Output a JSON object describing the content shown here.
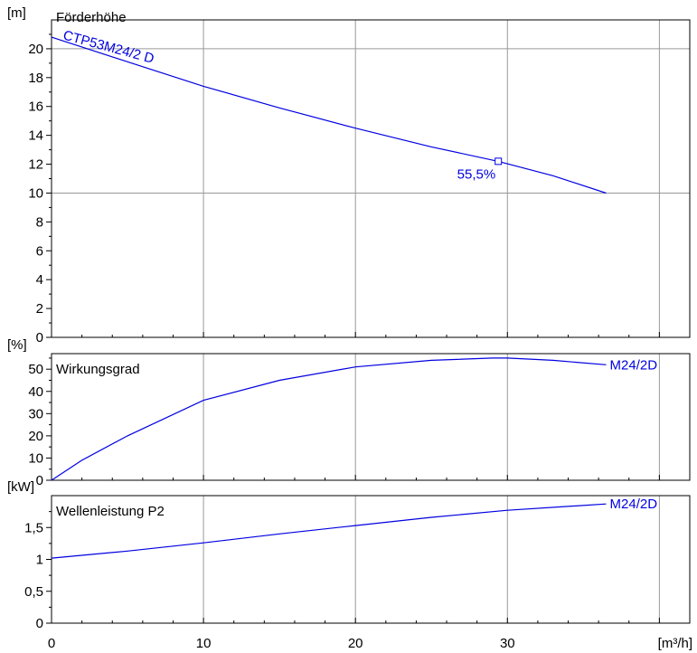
{
  "colors": {
    "curve": "#0000e0",
    "grid": "#999999",
    "frame": "#000000",
    "background": "#ffffff"
  },
  "x_axis": {
    "unit_label": "[m³/h]",
    "ticks": [
      "0",
      "10",
      "20",
      "30"
    ],
    "range": [
      0,
      42
    ]
  },
  "chart_data": [
    {
      "type": "line",
      "title": "Förderhöhe",
      "ylabel": "[m]",
      "ylim": [
        0,
        22
      ],
      "xlim": [
        0,
        42
      ],
      "yticks": [
        "0",
        "2",
        "4",
        "6",
        "8",
        "10",
        "12",
        "14",
        "16",
        "18",
        "20"
      ],
      "grid": true,
      "series": [
        {
          "name": "CTP53M24/2 D",
          "x": [
            0,
            5,
            10,
            15,
            20,
            25,
            29.4,
            33,
            36.5
          ],
          "y": [
            20.8,
            19.1,
            17.4,
            15.9,
            14.5,
            13.2,
            12.2,
            11.2,
            10.0
          ]
        }
      ],
      "annotations": [
        {
          "label": "55,5%",
          "x": 29.4,
          "y": 12.2
        }
      ]
    },
    {
      "type": "line",
      "title": "Wirkungsgrad",
      "ylabel": "[%]",
      "ylim": [
        0,
        57
      ],
      "xlim": [
        0,
        42
      ],
      "yticks": [
        "0",
        "10",
        "20",
        "30",
        "40",
        "50"
      ],
      "grid": true,
      "series": [
        {
          "name": "M24/2D",
          "x": [
            0,
            2,
            5,
            10,
            15,
            20,
            25,
            29,
            30,
            33,
            36.5
          ],
          "y": [
            0,
            9,
            20,
            36,
            45,
            51,
            54,
            55,
            55,
            54,
            52
          ]
        }
      ]
    },
    {
      "type": "line",
      "title": "Wellenleistung P2",
      "ylabel": "[kW]",
      "ylim": [
        0,
        2.0
      ],
      "xlim": [
        0,
        42
      ],
      "yticks": [
        "0",
        "0,5",
        "1",
        "1,5"
      ],
      "grid": true,
      "series": [
        {
          "name": "M24/2D",
          "x": [
            0,
            5,
            10,
            15,
            20,
            25,
            30,
            36.5
          ],
          "y": [
            1.02,
            1.13,
            1.26,
            1.4,
            1.53,
            1.66,
            1.77,
            1.87
          ]
        }
      ]
    }
  ]
}
